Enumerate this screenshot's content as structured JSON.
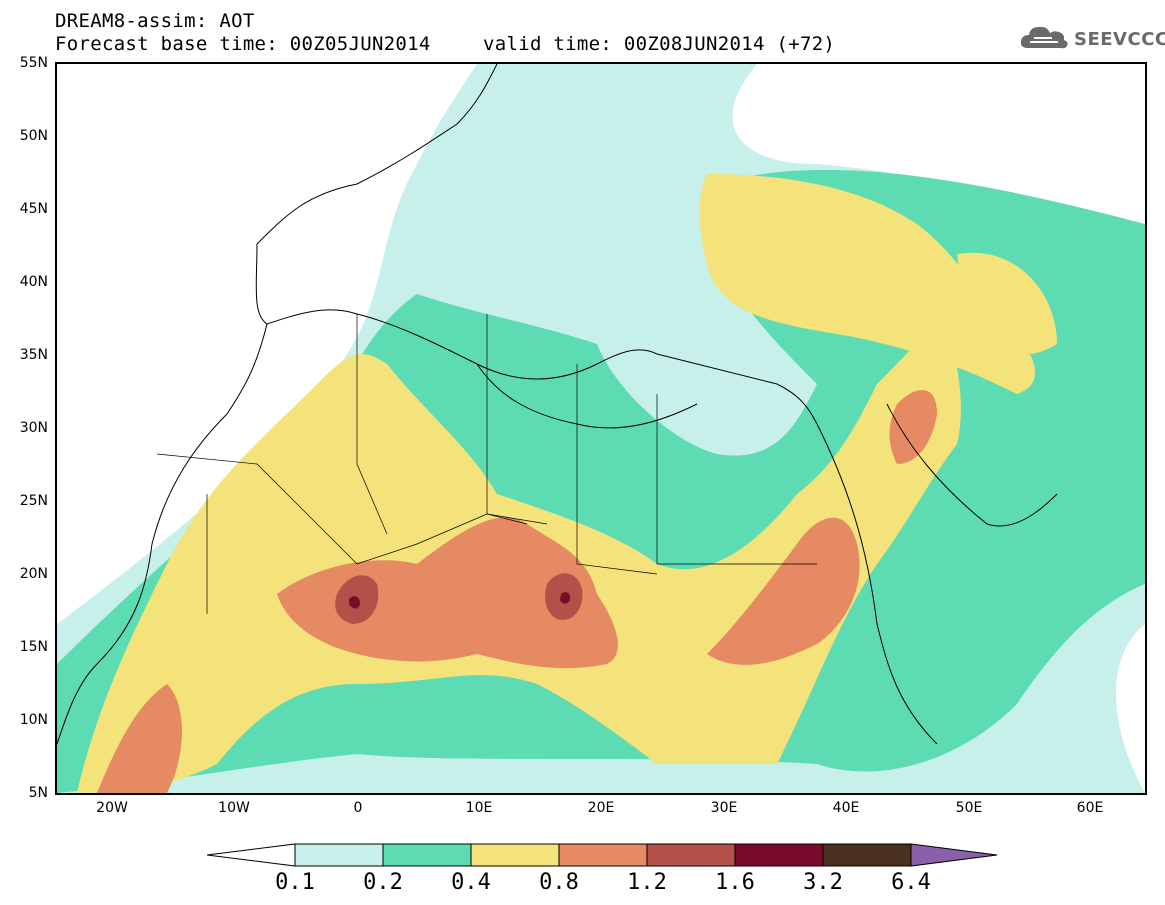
{
  "header": {
    "line1": "DREAM8-assim: AOT",
    "line2": "Forecast base time: 00Z05JUN2014",
    "line3": "valid time: 00Z08JUN2014 (+72)"
  },
  "logo": {
    "text": "SEEVCCC",
    "icon": "cloud-icon",
    "color": "#6a6a6a"
  },
  "lat_labels": [
    "55N",
    "50N",
    "45N",
    "40N",
    "35N",
    "30N",
    "25N",
    "20N",
    "15N",
    "10N",
    "5N"
  ],
  "lon_labels": [
    "20W",
    "10W",
    "0",
    "10E",
    "20E",
    "30E",
    "40E",
    "50E",
    "60E"
  ],
  "colorbar": {
    "labels": [
      "0.1",
      "0.2",
      "0.4",
      "0.8",
      "1.2",
      "1.6",
      "3.2",
      "6.4"
    ],
    "colors": [
      "#ffffff",
      "#c8f0ea",
      "#5ddcb4",
      "#f4e27a",
      "#e58a62",
      "#b4504a",
      "#7a0a2a",
      "#4a3020",
      "#8a60a8"
    ]
  },
  "map": {
    "variable": "AOT",
    "domain": "North Africa, Mediterranean, Middle East",
    "lon_range": [
      -25,
      65
    ],
    "lat_range": [
      5,
      55
    ]
  }
}
